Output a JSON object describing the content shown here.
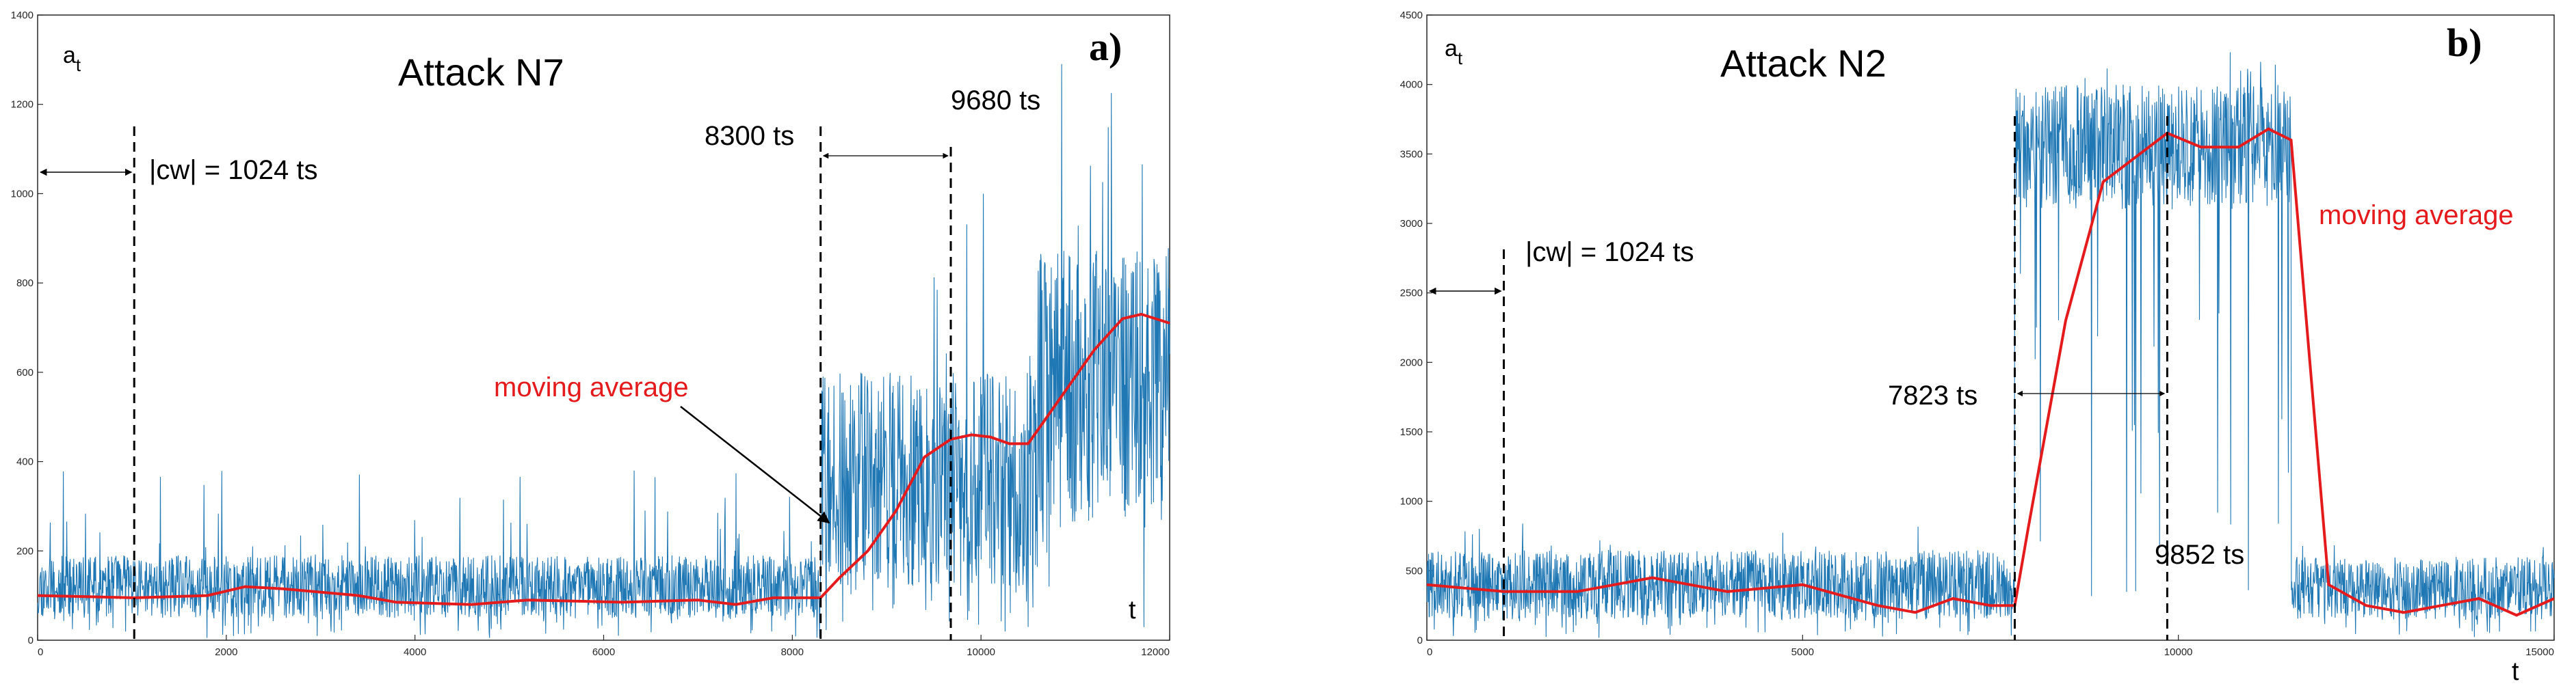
{
  "chart_data": [
    {
      "type": "line",
      "panel_label": "a)",
      "title": "Attack  N7",
      "ylabel_main": "a",
      "ylabel_sub": "t",
      "xlabel": "t",
      "xlim": [
        0,
        12000
      ],
      "ylim": [
        0,
        1400
      ],
      "xticks": [
        0,
        2000,
        4000,
        6000,
        8000,
        10000,
        12000
      ],
      "yticks": [
        0,
        200,
        400,
        600,
        800,
        1000,
        1200,
        1400
      ],
      "signal_color": "#1f77b4",
      "avg_color": "#e41a1c",
      "signal_segments": [
        {
          "x0": 0,
          "x1": 8300,
          "base": 50,
          "amp": 140,
          "spike": 380
        },
        {
          "x0": 8300,
          "x1": 10600,
          "base": 120,
          "amp": 480,
          "spike": 1100
        },
        {
          "x0": 10600,
          "x1": 12000,
          "base": 260,
          "amp": 620,
          "spike": 1300
        }
      ],
      "moving_average": {
        "name": "moving average",
        "x": [
          0,
          1024,
          1800,
          2200,
          2600,
          3400,
          3800,
          4600,
          5200,
          6200,
          7000,
          7400,
          7800,
          8300,
          8500,
          8800,
          9100,
          9400,
          9680,
          9900,
          10100,
          10300,
          10500,
          10700,
          10900,
          11200,
          11500,
          11700,
          12000
        ],
        "y": [
          100,
          95,
          100,
          120,
          115,
          100,
          85,
          80,
          90,
          85,
          90,
          80,
          95,
          95,
          140,
          200,
          290,
          410,
          450,
          460,
          455,
          440,
          440,
          500,
          560,
          650,
          720,
          730,
          710
        ]
      },
      "annotations": {
        "cw_label": "|cw| = 1024 ts",
        "cw_ts": 1024,
        "start_label": "8300 ts",
        "start_ts": 8300,
        "end_label": "9680 ts",
        "end_ts": 9680,
        "avg_label": "moving average"
      }
    },
    {
      "type": "line",
      "panel_label": "b)",
      "title": "Attack  N2",
      "ylabel_main": "a",
      "ylabel_sub": "t",
      "xlabel": "t",
      "xlim": [
        0,
        15000
      ],
      "ylim": [
        0,
        4500
      ],
      "xticks": [
        0,
        5000,
        10000,
        15000
      ],
      "yticks": [
        0,
        500,
        1000,
        1500,
        2000,
        2500,
        3000,
        3500,
        4000,
        4500
      ],
      "signal_color": "#1f77b4",
      "avg_color": "#e41a1c",
      "signal_segments": [
        {
          "x0": 0,
          "x1": 7823,
          "base": 150,
          "amp": 500,
          "spike": 900
        },
        {
          "x0": 7823,
          "x1": 11500,
          "base": 3100,
          "amp": 900,
          "spike": 4250
        },
        {
          "x0": 11500,
          "x1": 15000,
          "base": 150,
          "amp": 450,
          "spike": 700
        }
      ],
      "moving_average": {
        "name": "moving average",
        "x": [
          0,
          1024,
          2000,
          3000,
          4000,
          5000,
          6000,
          6500,
          7000,
          7500,
          7823,
          8000,
          8500,
          9000,
          9852,
          10300,
          10800,
          11200,
          11500,
          12000,
          12500,
          13000,
          13500,
          14000,
          14500,
          15000
        ],
        "y": [
          400,
          350,
          350,
          450,
          350,
          400,
          250,
          200,
          300,
          250,
          250,
          800,
          2300,
          3300,
          3650,
          3550,
          3550,
          3680,
          3600,
          400,
          250,
          200,
          250,
          300,
          180,
          300
        ]
      },
      "annotations": {
        "cw_label": "|cw| = 1024 ts",
        "cw_ts": 1024,
        "start_label": "7823 ts",
        "start_ts": 7823,
        "end_label": "9852 ts",
        "end_ts": 9852,
        "avg_label": "moving average"
      }
    }
  ]
}
